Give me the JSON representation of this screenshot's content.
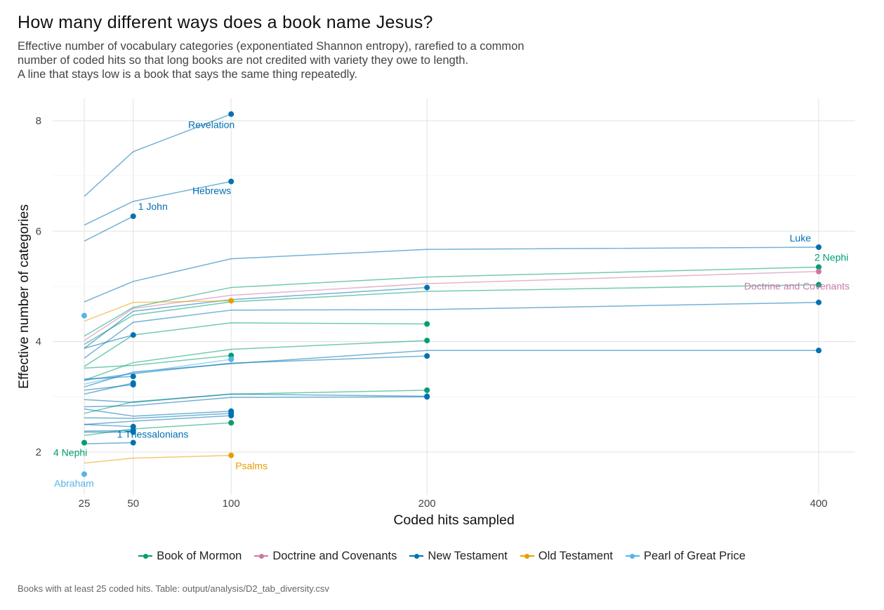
{
  "title": "How many different ways does a book name Jesus?",
  "subtitle": [
    "Effective number of vocabulary categories (exponentiated Shannon entropy), rarefied to a common",
    "number of coded hits so that long books are not credited with variety they owe to length.",
    "A line that stays low is a book that says the same thing repeatedly."
  ],
  "caption": "Books with at least 25 coded hits. Table: output/analysis/D2_tab_diversity.csv",
  "colors": {
    "Book of Mormon": "#009E73",
    "Doctrine and Covenants": "#CC79A7",
    "New Testament": "#0072B2",
    "Old Testament": "#E69F00",
    "Pearl of Great Price": "#56B4E9"
  },
  "legend": {
    "items": [
      {
        "label": "Book of Mormon",
        "color": "#009E73"
      },
      {
        "label": "Doctrine and Covenants",
        "color": "#CC79A7"
      },
      {
        "label": "New Testament",
        "color": "#0072B2"
      },
      {
        "label": "Old Testament",
        "color": "#E69F00"
      },
      {
        "label": "Pearl of Great Price",
        "color": "#56B4E9"
      }
    ]
  },
  "chart_data": {
    "type": "line",
    "xlabel": "Coded hits sampled",
    "ylabel": "Effective number of categories",
    "x_ticks": [
      25,
      50,
      100,
      200,
      400
    ],
    "y_ticks": [
      2,
      4,
      6,
      8
    ],
    "xlim": [
      25,
      400
    ],
    "ylim": [
      1.3,
      8.4
    ],
    "grid": true,
    "legend_position": "bottom",
    "series": [
      {
        "group": "New Testament",
        "label": "Revelation",
        "x": [
          25,
          50,
          100
        ],
        "y": [
          6.63,
          7.44,
          8.12
        ]
      },
      {
        "group": "New Testament",
        "label": "Hebrews",
        "x": [
          25,
          50,
          100
        ],
        "y": [
          6.11,
          6.54,
          6.9
        ]
      },
      {
        "group": "New Testament",
        "label": "1 John",
        "x": [
          25,
          50
        ],
        "y": [
          5.82,
          6.27
        ]
      },
      {
        "group": "New Testament",
        "label": "Luke",
        "x": [
          25,
          50,
          100,
          200,
          400
        ],
        "y": [
          4.72,
          5.09,
          5.5,
          5.67,
          5.71
        ]
      },
      {
        "group": "Book of Mormon",
        "label": "2 Nephi",
        "x": [
          25,
          50,
          100,
          200,
          400
        ],
        "y": [
          4.1,
          4.62,
          4.98,
          5.17,
          5.35
        ]
      },
      {
        "group": "Doctrine and Covenants",
        "label": "Doctrine and Covenants",
        "x": [
          25,
          50,
          100,
          200,
          400
        ],
        "y": [
          4.02,
          4.6,
          4.84,
          5.05,
          5.27
        ]
      },
      {
        "group": "Book of Mormon",
        "x": [
          25,
          50,
          100,
          200,
          400
        ],
        "y": [
          3.95,
          4.48,
          4.72,
          4.91,
          5.03
        ]
      },
      {
        "group": "New Testament",
        "x": [
          25,
          50,
          100,
          200
        ],
        "y": [
          3.88,
          4.55,
          4.76,
          4.98
        ]
      },
      {
        "group": "Old Testament",
        "x": [
          25,
          50,
          100
        ],
        "y": [
          4.37,
          4.71,
          4.74
        ]
      },
      {
        "group": "Pearl of Great Price",
        "x": [
          25
        ],
        "y": [
          4.47
        ]
      },
      {
        "group": "New Testament",
        "x": [
          25,
          50,
          100,
          200,
          400
        ],
        "y": [
          3.7,
          4.35,
          4.57,
          4.58,
          4.71
        ]
      },
      {
        "group": "Book of Mormon",
        "x": [
          25,
          50,
          100,
          200
        ],
        "y": [
          3.55,
          4.12,
          4.34,
          4.32
        ]
      },
      {
        "group": "New Testament",
        "x": [
          25,
          50
        ],
        "y": [
          3.88,
          4.12
        ]
      },
      {
        "group": "Book of Mormon",
        "x": [
          25,
          50,
          100,
          200
        ],
        "y": [
          3.3,
          3.62,
          3.86,
          4.02
        ]
      },
      {
        "group": "New Testament",
        "x": [
          25,
          50,
          100,
          200,
          400
        ],
        "y": [
          3.18,
          3.45,
          3.6,
          3.84,
          3.84
        ]
      },
      {
        "group": "Book of Mormon",
        "x": [
          25,
          50,
          100
        ],
        "y": [
          3.52,
          3.57,
          3.75
        ]
      },
      {
        "group": "New Testament",
        "x": [
          25,
          50,
          100,
          200
        ],
        "y": [
          3.3,
          3.42,
          3.61,
          3.74
        ]
      },
      {
        "group": "Pearl of Great Price",
        "x": [
          25,
          50,
          100
        ],
        "y": [
          3.23,
          3.43,
          3.68
        ]
      },
      {
        "group": "New Testament",
        "x": [
          25,
          50
        ],
        "y": [
          3.32,
          3.37
        ]
      },
      {
        "group": "New Testament",
        "x": [
          25,
          50
        ],
        "y": [
          3.12,
          3.22
        ]
      },
      {
        "group": "New Testament",
        "x": [
          25,
          50
        ],
        "y": [
          3.05,
          3.25
        ]
      },
      {
        "group": "Book of Mormon",
        "x": [
          25,
          50,
          100,
          200
        ],
        "y": [
          2.7,
          2.91,
          3.05,
          3.12
        ]
      },
      {
        "group": "New Testament",
        "x": [
          25,
          50,
          100,
          200
        ],
        "y": [
          2.95,
          2.9,
          3.05,
          3.01
        ]
      },
      {
        "group": "New Testament",
        "x": [
          25,
          50,
          100,
          200
        ],
        "y": [
          2.82,
          2.84,
          2.99,
          3.0
        ]
      },
      {
        "group": "New Testament",
        "x": [
          25,
          50,
          100
        ],
        "y": [
          2.78,
          2.65,
          2.74
        ]
      },
      {
        "group": "New Testament",
        "x": [
          25,
          50,
          100
        ],
        "y": [
          2.62,
          2.61,
          2.7
        ]
      },
      {
        "group": "New Testament",
        "x": [
          25,
          50,
          100
        ],
        "y": [
          2.5,
          2.56,
          2.66
        ]
      },
      {
        "group": "Book of Mormon",
        "x": [
          25,
          50,
          100
        ],
        "y": [
          2.3,
          2.42,
          2.53
        ]
      },
      {
        "group": "New Testament",
        "x": [
          25,
          50
        ],
        "y": [
          2.5,
          2.46
        ]
      },
      {
        "group": "New Testament",
        "label": "1 Thessalonians",
        "x": [
          25,
          50
        ],
        "y": [
          2.38,
          2.39
        ]
      },
      {
        "group": "New Testament",
        "x": [
          25,
          50
        ],
        "y": [
          2.36,
          2.36
        ]
      },
      {
        "group": "New Testament",
        "x": [
          25,
          50
        ],
        "y": [
          2.15,
          2.17
        ]
      },
      {
        "group": "Book of Mormon",
        "label": "4 Nephi",
        "x": [
          25
        ],
        "y": [
          2.17
        ]
      },
      {
        "group": "Old Testament",
        "label": "Psalms",
        "x": [
          25,
          50,
          100
        ],
        "y": [
          1.8,
          1.89,
          1.94
        ]
      },
      {
        "group": "Pearl of Great Price",
        "label": "Abraham",
        "x": [
          25
        ],
        "y": [
          1.6
        ]
      }
    ],
    "annotations": [
      {
        "text": "Revelation",
        "group": "New Testament"
      },
      {
        "text": "Hebrews",
        "group": "New Testament"
      },
      {
        "text": "1 John",
        "group": "New Testament"
      },
      {
        "text": "Luke",
        "group": "New Testament"
      },
      {
        "text": "2 Nephi",
        "group": "Book of Mormon"
      },
      {
        "text": "Doctrine and Covenants",
        "group": "Doctrine and Covenants"
      },
      {
        "text": "1 Thessalonians",
        "group": "New Testament"
      },
      {
        "text": "4 Nephi",
        "group": "Book of Mormon"
      },
      {
        "text": "Psalms",
        "group": "Old Testament"
      },
      {
        "text": "Abraham",
        "group": "Pearl of Great Price"
      }
    ]
  }
}
